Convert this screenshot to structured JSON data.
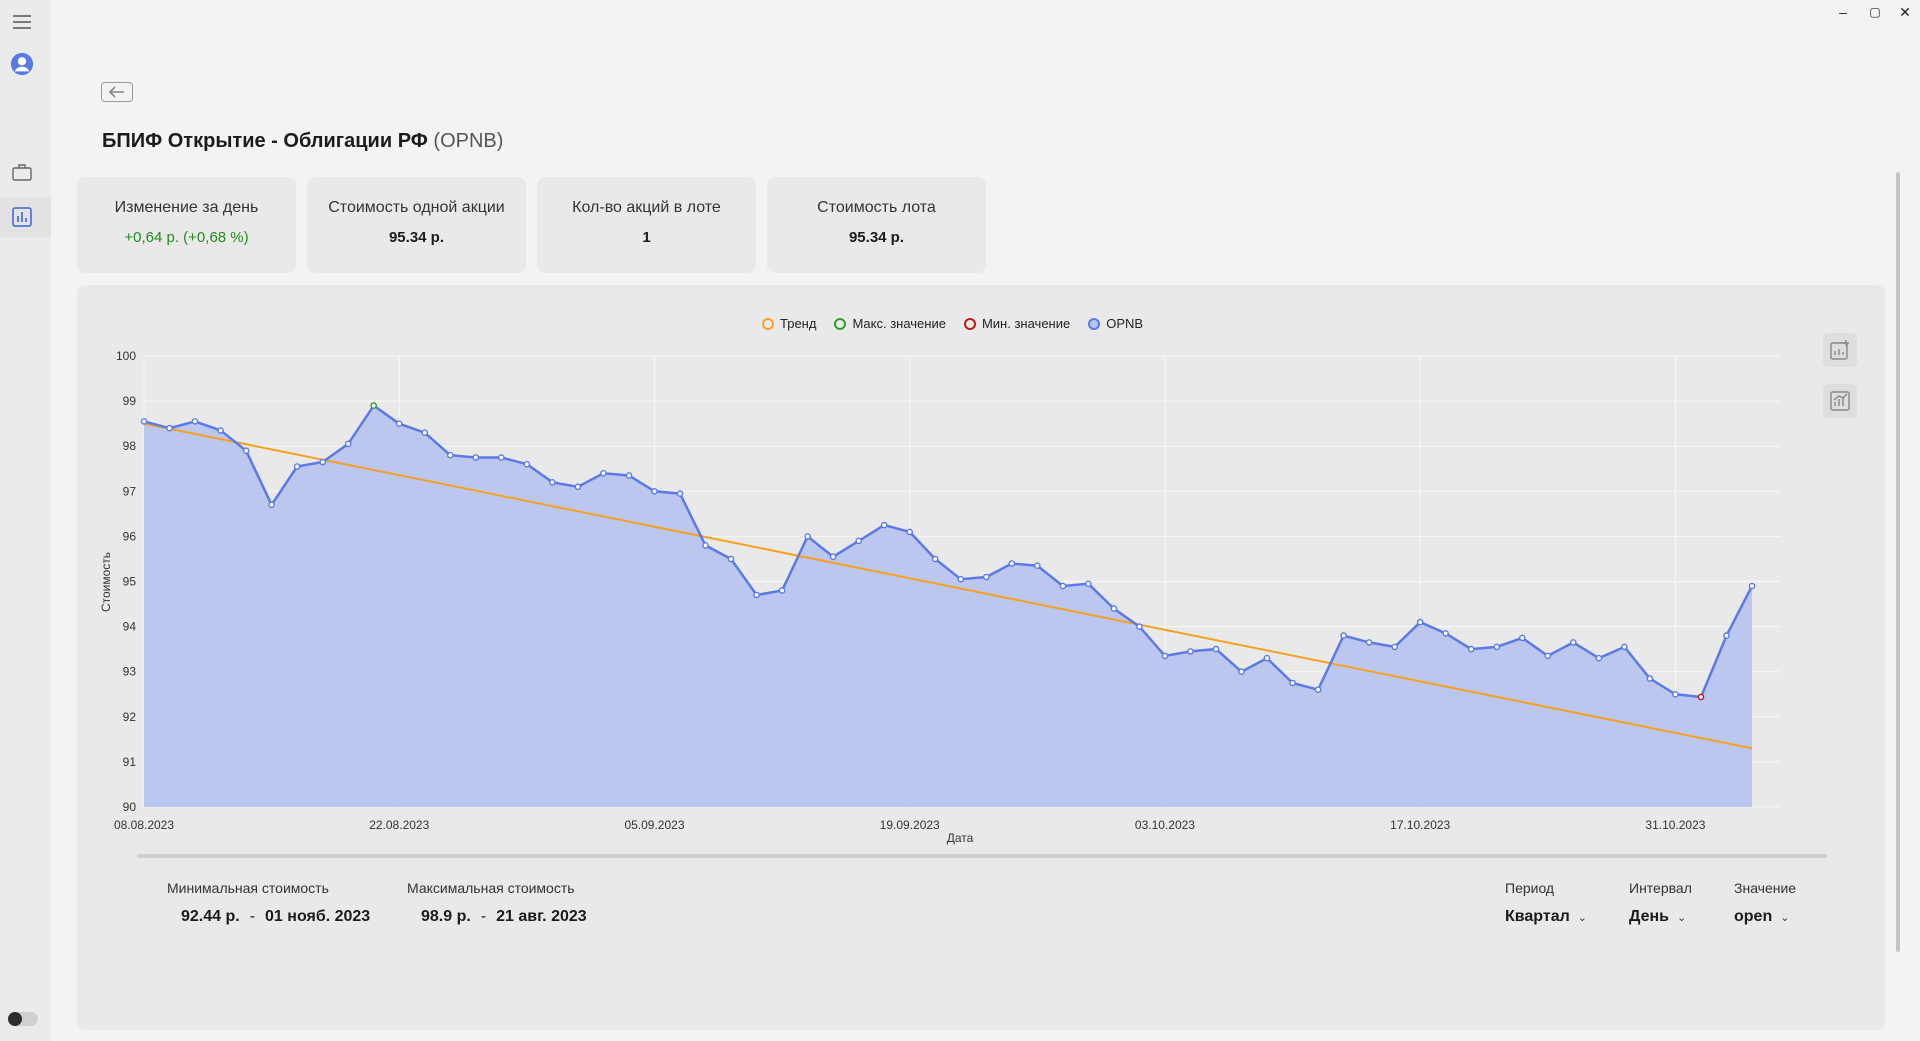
{
  "window": {
    "minimize": "–",
    "maximize": "▢",
    "close": "✕"
  },
  "header": {
    "title": "БПИФ Открытие - Облигации РФ",
    "ticker": "(OPNB)"
  },
  "cards": [
    {
      "label": "Изменение за день",
      "value": "+0,64 р. (+0,68 %)",
      "positive": true
    },
    {
      "label": "Стоимость одной акции",
      "value": "95.34 р."
    },
    {
      "label": "Кол-во акций в лоте",
      "value": "1"
    },
    {
      "label": "Стоимость лота",
      "value": "95.34 р."
    }
  ],
  "colors": {
    "trend": "#f5a020",
    "max": "#2e9e2e",
    "min": "#c01818",
    "series": "#5b79e8",
    "area": "#b9c5ef"
  },
  "legend": [
    "Тренд",
    "Макс. значение",
    "Мин. значение",
    "OPNB"
  ],
  "chart_data": {
    "type": "area",
    "xlabel": "Дата",
    "ylabel": "Стоимость",
    "ylim": [
      90,
      100
    ],
    "yticks": [
      90,
      91,
      92,
      93,
      94,
      95,
      96,
      97,
      98,
      99,
      100
    ],
    "xticks": [
      "08.08.2023",
      "22.08.2023",
      "05.09.2023",
      "19.09.2023",
      "03.10.2023",
      "17.10.2023",
      "31.10.2023"
    ],
    "series": [
      {
        "name": "OPNB",
        "values": [
          98.55,
          98.4,
          98.55,
          98.35,
          97.9,
          96.7,
          97.55,
          97.65,
          98.05,
          98.9,
          98.5,
          98.3,
          97.8,
          97.75,
          97.75,
          97.6,
          97.2,
          97.1,
          97.4,
          97.35,
          97.0,
          96.95,
          95.8,
          95.5,
          94.7,
          94.8,
          96.0,
          95.55,
          95.9,
          96.25,
          96.1,
          95.5,
          95.05,
          95.1,
          95.4,
          95.35,
          94.9,
          94.95,
          94.4,
          94.0,
          93.35,
          93.45,
          93.5,
          93.0,
          93.3,
          92.75,
          92.6,
          93.8,
          93.65,
          93.55,
          94.1,
          93.85,
          93.5,
          93.55,
          93.75,
          93.35,
          93.65,
          93.3,
          93.55,
          92.85,
          92.5,
          92.44,
          93.8,
          94.9
        ]
      }
    ],
    "trend": {
      "start": 98.5,
      "end": 91.3
    },
    "max_point": {
      "index": 9,
      "value": 98.9
    },
    "min_point": {
      "index": 61,
      "value": 92.44
    }
  },
  "stats": {
    "min_label": "Минимальная стоимость",
    "min_value": "92.44 р.",
    "min_date": "01 нояб. 2023",
    "max_label": "Максимальная стоимость",
    "max_value": "98.9 р.",
    "max_date": "21 авг. 2023",
    "dash": "-"
  },
  "selectors": {
    "period_label": "Период",
    "period_value": "Квартал",
    "interval_label": "Интервал",
    "interval_value": "День",
    "value_label": "Значение",
    "value_value": "open"
  }
}
